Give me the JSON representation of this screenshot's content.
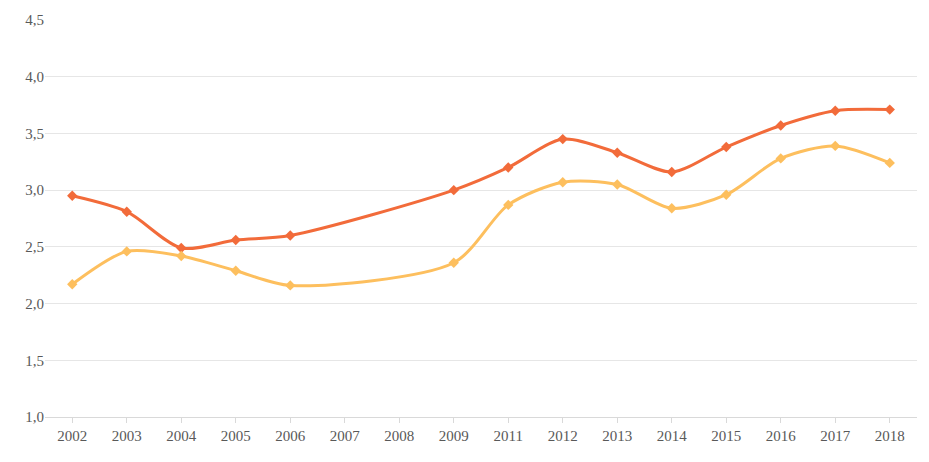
{
  "chart_data": {
    "type": "line",
    "categories": [
      "2002",
      "2003",
      "2004",
      "2005",
      "2006",
      "2007",
      "2008",
      "2009",
      "2011",
      "2012",
      "2013",
      "2014",
      "2015",
      "2016",
      "2017",
      "2018"
    ],
    "series": [
      {
        "color": "#f26b3a",
        "marker": "diamond",
        "values": [
          2.95,
          2.81,
          2.49,
          2.56,
          2.6,
          null,
          null,
          3.0,
          3.2,
          3.45,
          3.33,
          3.16,
          3.38,
          3.57,
          3.7,
          3.71
        ]
      },
      {
        "color": "#fdbf5e",
        "marker": "diamond",
        "values": [
          2.17,
          2.46,
          2.42,
          2.29,
          2.16,
          null,
          null,
          2.36,
          2.87,
          3.07,
          3.05,
          2.84,
          2.96,
          3.28,
          3.39,
          3.24
        ]
      }
    ],
    "ylim": [
      1,
      4.5
    ],
    "yticks": [
      {
        "value": 1,
        "label": "1,0"
      },
      {
        "value": 1.5,
        "label": "1,5"
      },
      {
        "value": 2,
        "label": "2,0"
      },
      {
        "value": 2.5,
        "label": "2,5"
      },
      {
        "value": 3,
        "label": "3,0"
      },
      {
        "value": 3.5,
        "label": "3,5"
      },
      {
        "value": 4,
        "label": "4,0"
      },
      {
        "value": 4.5,
        "label": "4,5"
      }
    ],
    "grid": true
  }
}
